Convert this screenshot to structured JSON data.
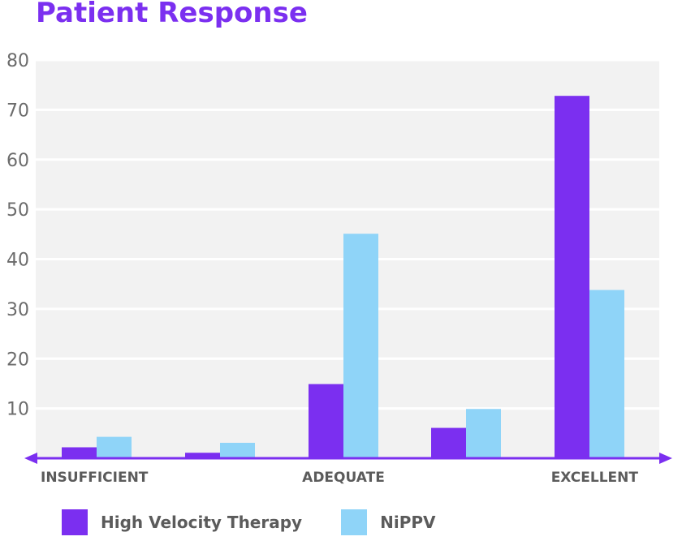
{
  "chart_data": {
    "type": "bar",
    "title": "Patient Response",
    "xlabel": "",
    "ylabel": "",
    "ylim": [
      0,
      80
    ],
    "yticks": [
      10,
      20,
      30,
      40,
      50,
      60,
      70,
      80
    ],
    "categories": [
      "INSUFFICIENT",
      "",
      "ADEQUATE",
      "",
      "EXCELLENT"
    ],
    "series": [
      {
        "name": "High Velocity Therapy",
        "color": "#7b2ff0",
        "values": [
          2.2,
          1.1,
          14.9,
          6.1,
          72.8
        ]
      },
      {
        "name": "NiPPV",
        "color": "#8fd4f8",
        "values": [
          4.3,
          3.1,
          45.1,
          9.9,
          33.8
        ]
      }
    ],
    "grid": true,
    "plot_background": "#f2f2f2",
    "axis_color": "#7b2ff0",
    "legend_position": "bottom-left"
  }
}
